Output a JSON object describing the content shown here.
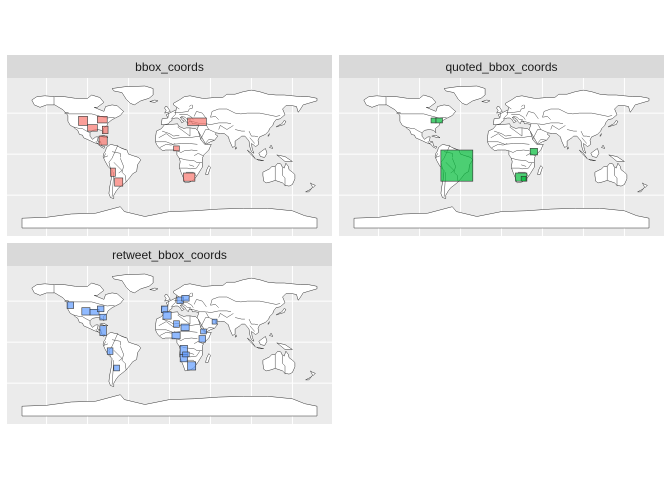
{
  "facets": [
    {
      "title": "bbox_coords",
      "fill": "#f8766d",
      "boxes": [
        {
          "xmin": -111,
          "xmax": -100,
          "ymin": 35,
          "ymax": 46
        },
        {
          "xmin": -100,
          "xmax": -88,
          "ymin": 28,
          "ymax": 36
        },
        {
          "xmin": -88,
          "xmax": -76,
          "ymin": 38,
          "ymax": 46
        },
        {
          "xmin": -82,
          "xmax": -75,
          "ymin": 25,
          "ymax": 34
        },
        {
          "xmin": -86,
          "xmax": -76,
          "ymin": 11,
          "ymax": 22
        },
        {
          "xmin": -72,
          "xmax": -66,
          "ymin": -27,
          "ymax": -17
        },
        {
          "xmin": -67,
          "xmax": -57,
          "ymin": -39,
          "ymax": -29
        },
        {
          "xmin": 22,
          "xmax": 45,
          "ymin": 35,
          "ymax": 44
        },
        {
          "xmin": 5,
          "xmax": 12,
          "ymin": 4,
          "ymax": 10
        },
        {
          "xmin": 17,
          "xmax": 31,
          "ymin": -33,
          "ymax": -23
        }
      ]
    },
    {
      "title": "quoted_bbox_coords",
      "fill": "#00ba38",
      "boxes": [
        {
          "xmin": -74,
          "xmax": -35,
          "ymin": -33,
          "ymax": 5
        },
        {
          "xmin": -86,
          "xmax": -80,
          "ymin": 38,
          "ymax": 44
        },
        {
          "xmin": -80,
          "xmax": -72,
          "ymin": 38,
          "ymax": 44
        },
        {
          "xmin": 35,
          "xmax": 44,
          "ymin": -1,
          "ymax": 7
        },
        {
          "xmin": 17,
          "xmax": 31,
          "ymin": -33,
          "ymax": -23
        },
        {
          "xmin": 24,
          "xmax": 30,
          "ymin": -33,
          "ymax": -27
        }
      ]
    },
    {
      "title": "retweet_bbox_coords",
      "fill": "#619cff",
      "boxes": [
        {
          "xmin": -125,
          "xmax": -117,
          "ymin": 41,
          "ymax": 49
        },
        {
          "xmin": -107,
          "xmax": -97,
          "ymin": 33,
          "ymax": 42
        },
        {
          "xmin": -97,
          "xmax": -86,
          "ymin": 33,
          "ymax": 40
        },
        {
          "xmin": -88,
          "xmax": -80,
          "ymin": 37,
          "ymax": 44
        },
        {
          "xmin": -85,
          "xmax": -77,
          "ymin": 27,
          "ymax": 34
        },
        {
          "xmin": -85,
          "xmax": -77,
          "ymin": 8,
          "ymax": 20
        },
        {
          "xmin": -76,
          "xmax": -69,
          "ymin": -15,
          "ymax": -7
        },
        {
          "xmin": -68,
          "xmax": -61,
          "ymin": -35,
          "ymax": -28
        },
        {
          "xmin": -10,
          "xmax": -2,
          "ymin": 36,
          "ymax": 44
        },
        {
          "xmin": -8,
          "xmax": 2,
          "ymin": 28,
          "ymax": 37
        },
        {
          "xmin": 9,
          "xmax": 17,
          "ymin": 47,
          "ymax": 55
        },
        {
          "xmin": 15,
          "xmax": 24,
          "ymin": 50,
          "ymax": 57
        },
        {
          "xmin": 5,
          "xmax": 12,
          "ymin": 18,
          "ymax": 26
        },
        {
          "xmin": 14,
          "xmax": 24,
          "ymin": 14,
          "ymax": 22
        },
        {
          "xmin": 3,
          "xmax": 13,
          "ymin": 4,
          "ymax": 12
        },
        {
          "xmin": 36,
          "xmax": 44,
          "ymin": 0,
          "ymax": 8
        },
        {
          "xmin": 52,
          "xmax": 58,
          "ymin": 22,
          "ymax": 28
        },
        {
          "xmin": 13,
          "xmax": 22,
          "ymin": -15,
          "ymax": -4
        },
        {
          "xmin": 13,
          "xmax": 22,
          "ymin": -24,
          "ymax": -15
        },
        {
          "xmin": 16,
          "xmax": 24,
          "ymin": -18,
          "ymax": -12
        },
        {
          "xmin": 22,
          "xmax": 32,
          "ymin": -34,
          "ymax": -24
        },
        {
          "xmin": 38,
          "xmax": 45,
          "ymin": 10,
          "ymax": 16
        }
      ]
    }
  ]
}
